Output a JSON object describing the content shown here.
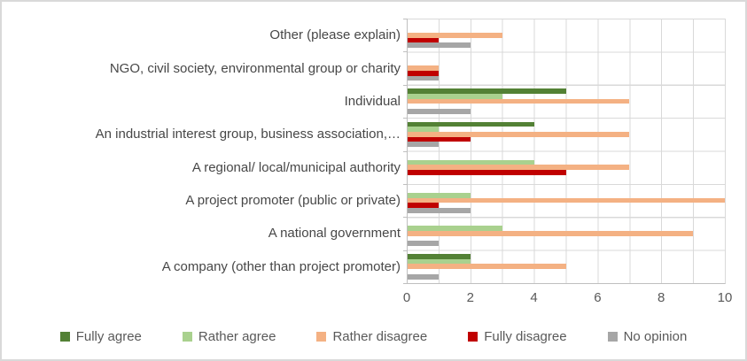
{
  "chart_data": {
    "type": "bar",
    "orientation": "horizontal",
    "title": "",
    "xlabel": "",
    "ylabel": "",
    "grid": true,
    "legend_position": "bottom",
    "categories": [
      "Other (please explain)",
      "NGO, civil society, environmental group or charity",
      "Individual",
      "An industrial interest group, business association,…",
      "A regional/ local/municipal authority",
      "A project promoter (public or private)",
      "A national government",
      "A company (other than project promoter)"
    ],
    "series": [
      {
        "name": "Fully agree",
        "color": "#538135",
        "values": [
          0,
          0,
          5,
          4,
          0,
          0,
          0,
          2
        ]
      },
      {
        "name": "Rather agree",
        "color": "#a9d18e",
        "values": [
          0,
          0,
          3,
          1,
          4,
          2,
          3,
          2
        ]
      },
      {
        "name": "Rather disagree",
        "color": "#f4b183",
        "values": [
          3,
          1,
          7,
          7,
          7,
          10,
          9,
          5
        ]
      },
      {
        "name": "Fully disagree",
        "color": "#c00000",
        "values": [
          1,
          1,
          0,
          2,
          5,
          1,
          0,
          0
        ]
      },
      {
        "name": "No opinion",
        "color": "#a6a6a6",
        "values": [
          2,
          1,
          2,
          1,
          0,
          2,
          1,
          1
        ]
      }
    ],
    "x_axis": {
      "min": 0,
      "max": 10,
      "major_unit": 2,
      "minor_unit": 1,
      "tick_labels": [
        "0",
        "2",
        "4",
        "6",
        "8",
        "10"
      ]
    }
  }
}
